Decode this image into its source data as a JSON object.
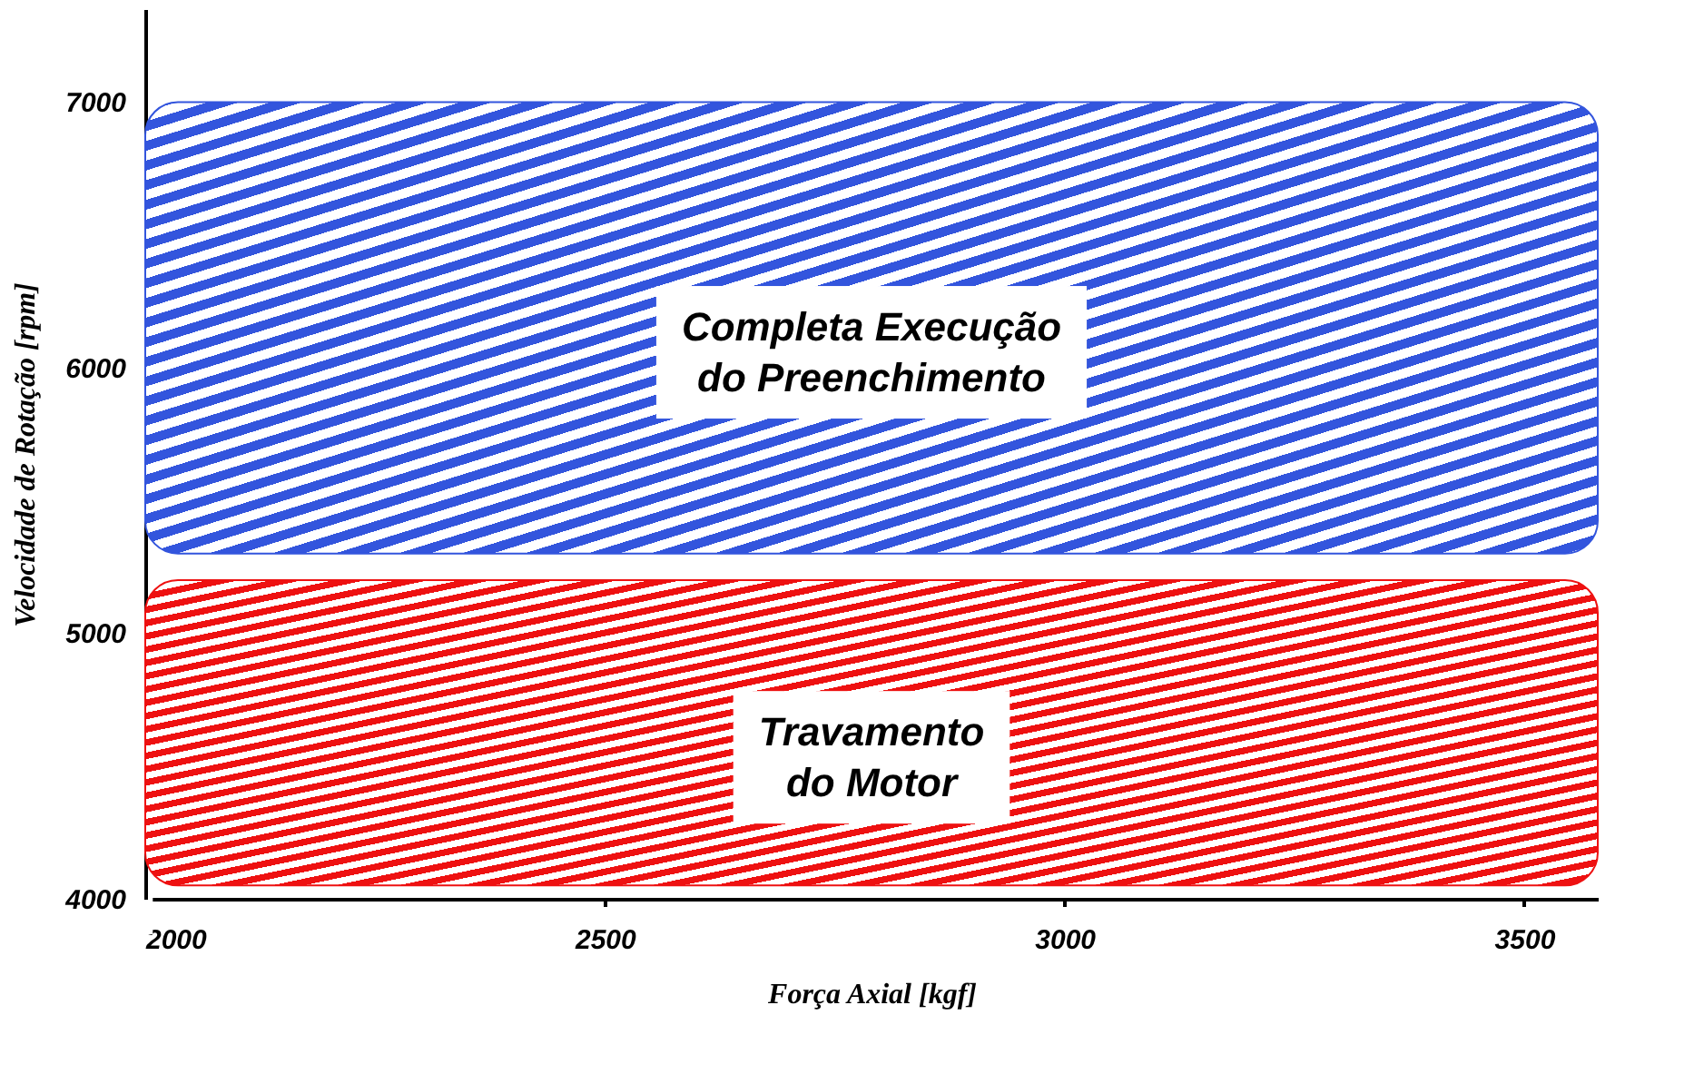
{
  "chart_data": {
    "type": "line",
    "xlabel": "Força Axial [kgf]",
    "ylabel": "Velocidade de Rotação [rpm]",
    "xlim": [
      2000,
      3580
    ],
    "xticks": [
      2000,
      2500,
      3000,
      3500
    ],
    "ylim": [
      4000,
      7350
    ],
    "yticks": [
      4000,
      5000,
      6000,
      7000
    ],
    "bands": [
      {
        "axis": "y",
        "from": 5300,
        "to": 7000,
        "label": "Completa Execução do Preenchimento",
        "color": "#3355dd"
      },
      {
        "axis": "y",
        "from": 4050,
        "to": 5200,
        "label": "Travamento do Motor",
        "color": "#ee1111"
      }
    ]
  }
}
